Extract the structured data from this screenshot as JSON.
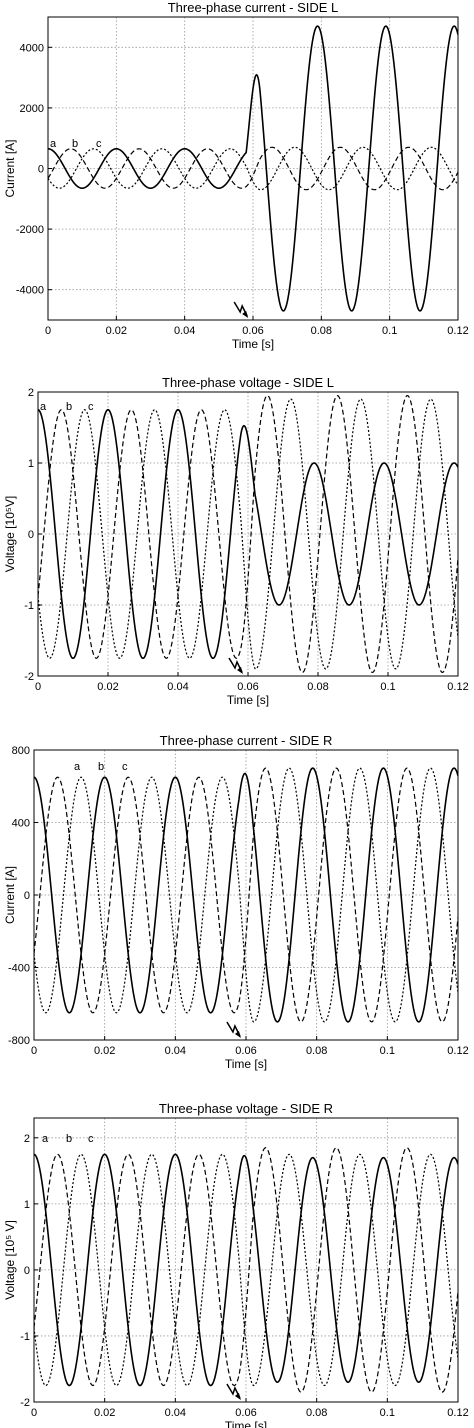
{
  "chart_data": [
    {
      "type": "line",
      "title": "Three-phase current - SIDE L",
      "xlabel": "Time [s]",
      "ylabel": "Current [A]",
      "xlim": [
        0,
        0.12
      ],
      "ylim": [
        -5000,
        5000
      ],
      "x_ticks": [
        0,
        0.02,
        0.04,
        0.06,
        0.08,
        0.1,
        0.12
      ],
      "x_tick_labels": [
        "0",
        "0.02",
        "0.04",
        "0.06",
        "0.08",
        "0.1",
        "0.12"
      ],
      "y_ticks": [
        -4000,
        -2000,
        0,
        2000,
        4000
      ],
      "y_tick_labels": [
        "-4000",
        "-2000",
        "0",
        "2000",
        "4000"
      ],
      "grid": true,
      "phase_labels": [
        "a",
        "b",
        "c"
      ],
      "fault_time": 0.058,
      "frequency_hz": 50,
      "series": [
        {
          "name": "a",
          "style": "solid",
          "pre_fault_amplitude": 650,
          "post_fault_amplitude": 4700,
          "peaks": [
            {
              "x": 0.063,
              "y": 3800
            },
            {
              "x": 0.073,
              "y": -5000
            },
            {
              "x": 0.083,
              "y": 4700
            },
            {
              "x": 0.093,
              "y": -4800
            },
            {
              "x": 0.103,
              "y": 4700
            },
            {
              "x": 0.113,
              "y": -4600
            }
          ]
        },
        {
          "name": "b",
          "style": "dashed",
          "pre_fault_amplitude": 650,
          "post_fault_amplitude": 700
        },
        {
          "name": "c",
          "style": "dotted",
          "pre_fault_amplitude": 650,
          "post_fault_amplitude": 700
        }
      ]
    },
    {
      "type": "line",
      "title": "Three-phase voltage - SIDE L",
      "xlabel": "Time [s]",
      "ylabel": "Voltage [10⁵V]",
      "xlim": [
        0,
        0.12
      ],
      "ylim": [
        -2,
        2
      ],
      "x_ticks": [
        0,
        0.02,
        0.04,
        0.06,
        0.08,
        0.1,
        0.12
      ],
      "x_tick_labels": [
        "0",
        "0.02",
        "0.04",
        "0.06",
        "0.08",
        "0.1",
        "0.12"
      ],
      "y_ticks": [
        -2,
        -1,
        0,
        1,
        2
      ],
      "y_tick_labels": [
        "-2",
        "-1",
        "0",
        "1",
        "2"
      ],
      "grid": true,
      "phase_labels": [
        "a",
        "b",
        "c"
      ],
      "fault_time": 0.058,
      "frequency_hz": 50,
      "series": [
        {
          "name": "a",
          "style": "solid",
          "pre_fault_amplitude": 1.75,
          "post_fault_amplitude": 1.0
        },
        {
          "name": "b",
          "style": "dashed",
          "pre_fault_amplitude": 1.75,
          "post_fault_amplitude": 1.95
        },
        {
          "name": "c",
          "style": "dotted",
          "pre_fault_amplitude": 1.75,
          "post_fault_amplitude": 1.9
        }
      ]
    },
    {
      "type": "line",
      "title": "Three-phase current - SIDE R",
      "xlabel": "Time [s]",
      "ylabel": "Current [A]",
      "xlim": [
        0,
        0.12
      ],
      "ylim": [
        -800,
        800
      ],
      "x_ticks": [
        0,
        0.02,
        0.04,
        0.06,
        0.08,
        0.1,
        0.12
      ],
      "x_tick_labels": [
        "0",
        "0.02",
        "0.04",
        "0.06",
        "0.08",
        "0.1",
        "0.12"
      ],
      "y_ticks": [
        -800,
        -400,
        0,
        400,
        800
      ],
      "y_tick_labels": [
        "-800",
        "-400",
        "0",
        "400",
        "800"
      ],
      "grid": true,
      "phase_labels": [
        "a",
        "b",
        "c"
      ],
      "fault_time": 0.058,
      "frequency_hz": 50,
      "series": [
        {
          "name": "a",
          "style": "solid",
          "pre_fault_amplitude": 650,
          "post_fault_amplitude": 700
        },
        {
          "name": "b",
          "style": "dashed",
          "pre_fault_amplitude": 650,
          "post_fault_amplitude": 700
        },
        {
          "name": "c",
          "style": "dotted",
          "pre_fault_amplitude": 650,
          "post_fault_amplitude": 700
        }
      ]
    },
    {
      "type": "line",
      "title": "Three-phase voltage - SIDE R",
      "xlabel": "Time [s]",
      "ylabel": "Voltage [10⁵ V]",
      "xlim": [
        0,
        0.12
      ],
      "ylim": [
        -2,
        2.3
      ],
      "x_ticks": [
        0,
        0.02,
        0.04,
        0.06,
        0.08,
        0.1,
        0.12
      ],
      "x_tick_labels": [
        "0",
        "0.02",
        "0.04",
        "0.06",
        "0.08",
        "0.1",
        "0.12"
      ],
      "y_ticks": [
        -2,
        -1,
        0,
        1,
        2
      ],
      "y_tick_labels": [
        "-2",
        "-1",
        "0",
        "1",
        "2"
      ],
      "grid": true,
      "phase_labels": [
        "a",
        "b",
        "c"
      ],
      "fault_time": 0.058,
      "frequency_hz": 50,
      "series": [
        {
          "name": "a",
          "style": "solid",
          "pre_fault_amplitude": 1.75,
          "post_fault_amplitude": 1.7
        },
        {
          "name": "b",
          "style": "dashed",
          "pre_fault_amplitude": 1.75,
          "post_fault_amplitude": 1.85
        },
        {
          "name": "c",
          "style": "dotted",
          "pre_fault_amplitude": 1.75,
          "post_fault_amplitude": 1.75
        }
      ]
    }
  ]
}
